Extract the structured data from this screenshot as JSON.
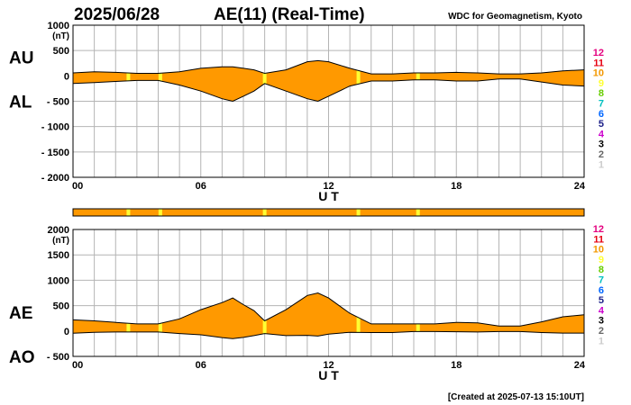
{
  "header": {
    "date": "2025/06/28",
    "title": "AE(11) (Real-Time)",
    "credit": "WDC for Geomagnetism, Kyoto"
  },
  "footer": {
    "created": "[Created at 2025-07-13 15:10UT]"
  },
  "colors": {
    "fill": "#ff9900",
    "highlight": "#ffff33",
    "grid": "#b4b4b4",
    "line": "#000000"
  },
  "x_ticks": [
    "00",
    "06",
    "12",
    "18",
    "24"
  ],
  "station_counts": [
    {
      "label": "12",
      "color": "#e4007f"
    },
    {
      "label": "11",
      "color": "#e60012"
    },
    {
      "label": "10",
      "color": "#f39800"
    },
    {
      "label": "9",
      "color": "#ffff33"
    },
    {
      "label": "8",
      "color": "#66cc00"
    },
    {
      "label": "7",
      "color": "#00c0c0"
    },
    {
      "label": "6",
      "color": "#0066ff"
    },
    {
      "label": "5",
      "color": "#1d2088"
    },
    {
      "label": "4",
      "color": "#cc00cc"
    },
    {
      "label": "3",
      "color": "#000000"
    },
    {
      "label": "2",
      "color": "#666666"
    },
    {
      "label": "1",
      "color": "#cccccc"
    }
  ],
  "chart_data": [
    {
      "type": "area",
      "xlabel": "U T",
      "unit": "(nT)",
      "xlim": [
        0,
        24
      ],
      "ylim": [
        -2000,
        1000
      ],
      "yticks": [
        "1000",
        "500",
        "0",
        "- 500",
        "- 1000",
        "- 1500",
        "- 2000"
      ],
      "series": [
        {
          "name": "AU",
          "x": [
            0,
            1,
            2,
            3,
            4,
            5,
            6,
            7,
            7.5,
            8,
            8.5,
            9,
            10,
            11,
            11.5,
            12,
            13,
            14,
            15,
            16,
            17,
            18,
            19,
            20,
            21,
            22,
            23,
            24
          ],
          "values": [
            60,
            80,
            70,
            50,
            50,
            80,
            150,
            180,
            180,
            150,
            120,
            50,
            120,
            280,
            300,
            280,
            150,
            40,
            40,
            60,
            60,
            70,
            60,
            40,
            40,
            60,
            100,
            120
          ]
        },
        {
          "name": "AL",
          "x": [
            0,
            1,
            2,
            3,
            4,
            5,
            6,
            7,
            7.5,
            8,
            8.5,
            9,
            10,
            11,
            11.5,
            12,
            13,
            14,
            15,
            16,
            17,
            18,
            19,
            20,
            21,
            22,
            23,
            24
          ],
          "values": [
            -150,
            -130,
            -110,
            -90,
            -90,
            -180,
            -300,
            -450,
            -500,
            -400,
            -300,
            -150,
            -300,
            -450,
            -500,
            -400,
            -200,
            -100,
            -100,
            -80,
            -80,
            -100,
            -100,
            -60,
            -60,
            -120,
            -180,
            -200
          ]
        }
      ]
    },
    {
      "type": "area",
      "xlabel": "U T",
      "unit": "(nT)",
      "xlim": [
        0,
        24
      ],
      "ylim": [
        -500,
        2000
      ],
      "yticks": [
        "2000",
        "1500",
        "1000",
        "500",
        "0",
        "- 500"
      ],
      "series": [
        {
          "name": "AE",
          "x": [
            0,
            1,
            2,
            3,
            4,
            5,
            6,
            7,
            7.5,
            8,
            8.5,
            9,
            10,
            11,
            11.5,
            12,
            13,
            14,
            15,
            16,
            17,
            18,
            19,
            20,
            21,
            22,
            23,
            24
          ],
          "values": [
            220,
            200,
            170,
            140,
            140,
            240,
            420,
            560,
            650,
            520,
            400,
            200,
            420,
            700,
            750,
            650,
            350,
            140,
            140,
            140,
            140,
            170,
            160,
            100,
            100,
            180,
            280,
            320
          ]
        },
        {
          "name": "AO",
          "x": [
            0,
            1,
            2,
            3,
            4,
            5,
            6,
            7,
            7.5,
            8,
            8.5,
            9,
            10,
            11,
            11.5,
            12,
            13,
            14,
            15,
            16,
            17,
            18,
            19,
            20,
            21,
            22,
            23,
            24
          ],
          "values": [
            -45,
            -25,
            -20,
            -20,
            -20,
            -50,
            -75,
            -130,
            -150,
            -125,
            -90,
            -50,
            -90,
            -85,
            -100,
            -60,
            -25,
            -30,
            -30,
            -10,
            -10,
            -15,
            -20,
            -10,
            -10,
            -30,
            -40,
            -40
          ]
        }
      ]
    }
  ],
  "coverage": {
    "highlight_hours": [
      2.6,
      4.1,
      9.0,
      13.4,
      16.2
    ]
  }
}
